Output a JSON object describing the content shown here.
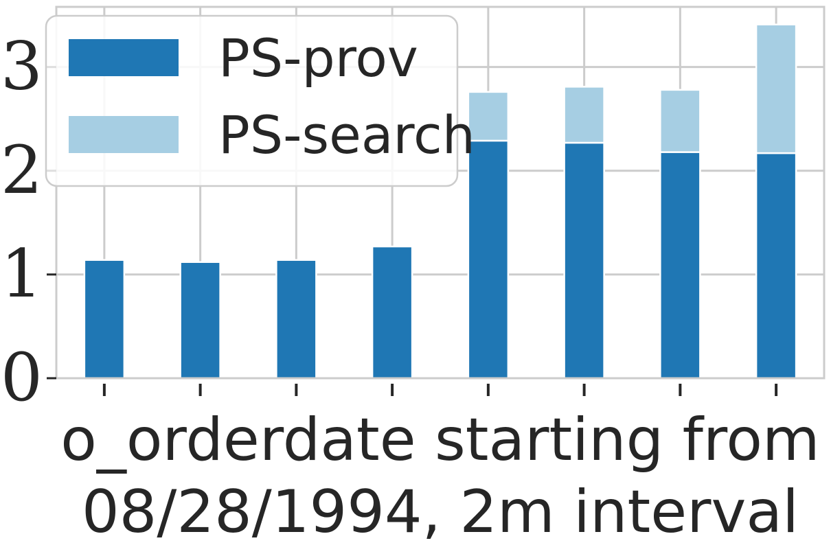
{
  "chart_data": {
    "type": "bar",
    "stacked": true,
    "categories": [
      "",
      "",
      "",
      "",
      "",
      "",
      "",
      ""
    ],
    "series": [
      {
        "name": "PS-prov",
        "color": "#1f77b4",
        "values": [
          1.14,
          1.12,
          1.14,
          1.27,
          2.29,
          2.27,
          2.18,
          2.17
        ]
      },
      {
        "name": "PS-search",
        "color": "#a6cee3",
        "values": [
          0,
          0,
          0,
          0,
          0.47,
          0.54,
          0.6,
          1.24
        ]
      }
    ],
    "xlabel_lines": [
      "o_orderdate starting from",
      "08/28/1994, 2m interval"
    ],
    "ylabel": "",
    "ylim": [
      0,
      3.58
    ],
    "yticks": [
      0,
      1,
      2,
      3
    ],
    "grid": true,
    "legend_position": "top-left"
  }
}
